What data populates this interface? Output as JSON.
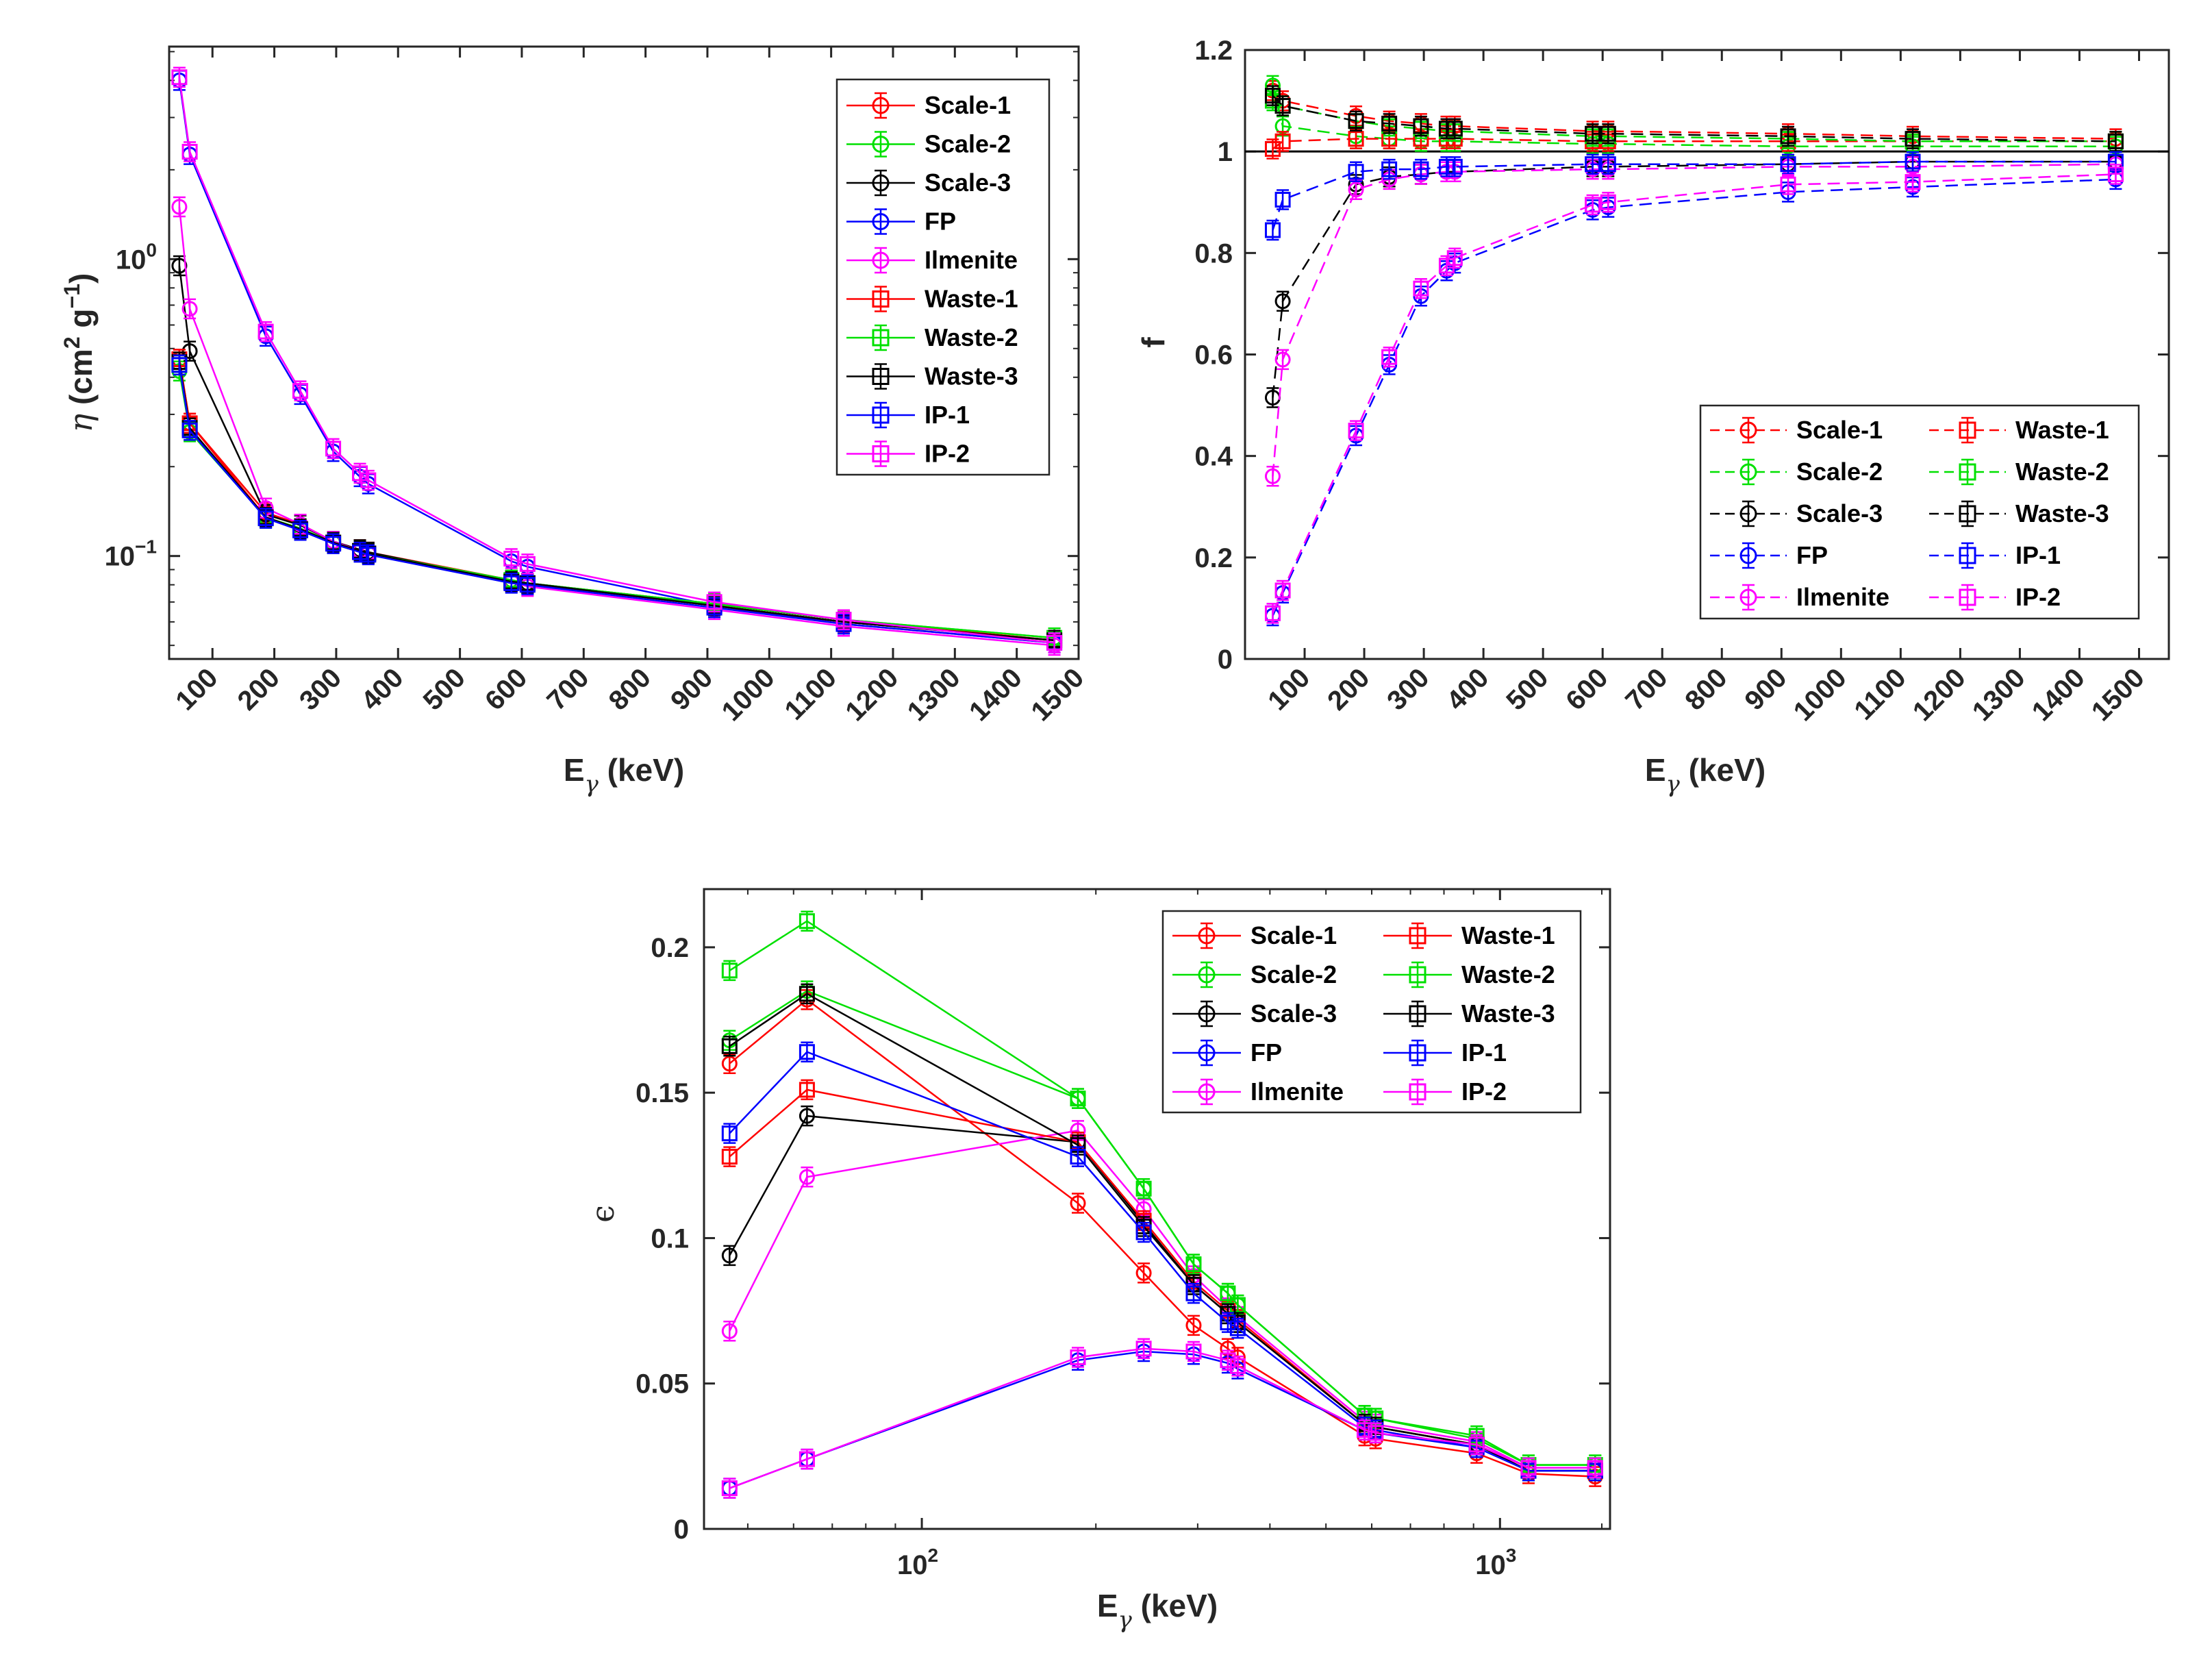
{
  "chart_data": [
    {
      "type": "line",
      "name": "eta",
      "yscale": "log",
      "xscale": "linear",
      "xlim": [
        30,
        1500
      ],
      "ylim": [
        0.045,
        5.2
      ],
      "ylabel_sym": "η",
      "ylabel_rest": " (cm",
      "ylabel_sup1": "2",
      "ylabel_mid": " g",
      "ylabel_sup2": "−1",
      "ylabel_end": ")",
      "xlabel_main": "E",
      "xlabel_sub": "γ",
      "xlabel_unit": " (keV)",
      "xticks": [
        100,
        200,
        300,
        400,
        500,
        600,
        700,
        800,
        900,
        1000,
        1100,
        1200,
        1300,
        1400,
        1500
      ],
      "xtick_labels": [
        "100",
        "200",
        "300",
        "400",
        "500",
        "600",
        "700",
        "800",
        "900",
        "1000",
        "1100",
        "1200",
        "1300",
        "1400",
        "1500"
      ],
      "ytick_labels": [
        {
          "value": 1,
          "base": "10",
          "exp": "0"
        },
        {
          "value": 0.1,
          "base": "10",
          "exp": "−1"
        }
      ],
      "legend_position": "top-right",
      "x": [
        46.5,
        63.3,
        186.2,
        242,
        295.2,
        338.3,
        351.9,
        583.2,
        609.3,
        911.2,
        1120.3,
        1460.8
      ],
      "series": [
        {
          "name": "Scale-1",
          "color": "#ff0000",
          "marker": "circle",
          "values": [
            0.46,
            0.28,
            0.14,
            0.128,
            0.112,
            0.105,
            0.103,
            0.083,
            0.081,
            0.069,
            0.061,
            0.052
          ]
        },
        {
          "name": "Scale-2",
          "color": "#00e000",
          "marker": "circle",
          "values": [
            0.42,
            0.262,
            0.135,
            0.124,
            0.111,
            0.104,
            0.102,
            0.083,
            0.081,
            0.069,
            0.061,
            0.053
          ]
        },
        {
          "name": "Scale-3",
          "color": "#000000",
          "marker": "circle",
          "values": [
            0.95,
            0.49,
            0.138,
            0.127,
            0.112,
            0.105,
            0.103,
            0.082,
            0.081,
            0.068,
            0.06,
            0.052
          ]
        },
        {
          "name": "FP",
          "color": "#0000ff",
          "marker": "circle",
          "values": [
            4.0,
            2.25,
            0.55,
            0.35,
            0.225,
            0.185,
            0.175,
            0.096,
            0.092,
            0.068,
            0.059,
            0.051
          ]
        },
        {
          "name": "Ilmenite",
          "color": "#ff00ff",
          "marker": "circle",
          "values": [
            1.5,
            0.68,
            0.145,
            0.128,
            0.112,
            0.104,
            0.102,
            0.082,
            0.079,
            0.066,
            0.058,
            0.05
          ]
        },
        {
          "name": "Waste-1",
          "color": "#ff0000",
          "marker": "square",
          "values": [
            0.46,
            0.28,
            0.135,
            0.123,
            0.111,
            0.104,
            0.102,
            0.082,
            0.081,
            0.068,
            0.06,
            0.052
          ]
        },
        {
          "name": "Waste-2",
          "color": "#00e000",
          "marker": "square",
          "values": [
            0.44,
            0.27,
            0.134,
            0.123,
            0.111,
            0.104,
            0.102,
            0.083,
            0.081,
            0.069,
            0.061,
            0.053
          ]
        },
        {
          "name": "Waste-3",
          "color": "#000000",
          "marker": "square",
          "values": [
            0.45,
            0.27,
            0.135,
            0.123,
            0.111,
            0.104,
            0.102,
            0.082,
            0.081,
            0.068,
            0.06,
            0.052
          ]
        },
        {
          "name": "IP-1",
          "color": "#0000ff",
          "marker": "square",
          "values": [
            0.44,
            0.265,
            0.134,
            0.122,
            0.11,
            0.103,
            0.101,
            0.081,
            0.08,
            0.067,
            0.059,
            0.051
          ]
        },
        {
          "name": "IP-2",
          "color": "#ff00ff",
          "marker": "square",
          "values": [
            4.1,
            2.3,
            0.57,
            0.36,
            0.23,
            0.19,
            0.18,
            0.098,
            0.094,
            0.07,
            0.061,
            0.051
          ]
        }
      ]
    },
    {
      "type": "line",
      "name": "f",
      "yscale": "linear",
      "xscale": "linear",
      "xlim": [
        0,
        1550
      ],
      "ylim": [
        0,
        1.2
      ],
      "ylabel": "f",
      "xlabel_main": "E",
      "xlabel_sub": "γ",
      "xlabel_unit": " (keV)",
      "xticks": [
        100,
        200,
        300,
        400,
        500,
        600,
        700,
        800,
        900,
        1000,
        1100,
        1200,
        1300,
        1400,
        1500
      ],
      "xtick_labels": [
        "100",
        "200",
        "300",
        "400",
        "500",
        "600",
        "700",
        "800",
        "900",
        "1000",
        "1100",
        "1200",
        "1300",
        "1400",
        "1500"
      ],
      "yticks": [
        0,
        0.2,
        0.4,
        0.6,
        0.8,
        1,
        1.2
      ],
      "ytick_labels": [
        "0",
        "0.2",
        "0.4",
        "0.6",
        "0.8",
        "1",
        "1.2"
      ],
      "reference_line": 1,
      "legend_position": "bottom-right",
      "x": [
        46.5,
        63.3,
        186.2,
        242,
        295.2,
        338.3,
        351.9,
        583.2,
        609.3,
        911.2,
        1120.3,
        1460.8
      ],
      "series": [
        {
          "name": "Scale-1",
          "color": "#ff0000",
          "marker": "circle",
          "values": [
            1.12,
            1.1,
            1.07,
            1.06,
            1.055,
            1.05,
            1.05,
            1.04,
            1.04,
            1.035,
            1.03,
            1.025
          ]
        },
        {
          "name": "Scale-2",
          "color": "#00e000",
          "marker": "circle",
          "values": [
            1.13,
            1.05,
            1.03,
            1.025,
            1.02,
            1.02,
            1.02,
            1.015,
            1.015,
            1.01,
            1.01,
            1.01
          ]
        },
        {
          "name": "Scale-3",
          "color": "#000000",
          "marker": "circle",
          "values": [
            0.515,
            0.705,
            0.935,
            0.95,
            0.955,
            0.96,
            0.96,
            0.97,
            0.97,
            0.975,
            0.98,
            0.98
          ]
        },
        {
          "name": "FP",
          "color": "#0000ff",
          "marker": "circle",
          "values": [
            0.085,
            0.13,
            0.44,
            0.58,
            0.715,
            0.765,
            0.78,
            0.885,
            0.89,
            0.92,
            0.93,
            0.945
          ]
        },
        {
          "name": "Ilmenite",
          "color": "#ff00ff",
          "marker": "circle",
          "values": [
            0.36,
            0.59,
            0.925,
            0.945,
            0.955,
            0.96,
            0.96,
            0.965,
            0.965,
            0.97,
            0.97,
            0.975
          ]
        },
        {
          "name": "Waste-1",
          "color": "#ff0000",
          "marker": "square",
          "values": [
            1.005,
            1.02,
            1.025,
            1.025,
            1.025,
            1.025,
            1.025,
            1.02,
            1.02,
            1.02,
            1.02,
            1.02
          ]
        },
        {
          "name": "Waste-2",
          "color": "#00e000",
          "marker": "square",
          "values": [
            1.1,
            1.09,
            1.06,
            1.05,
            1.045,
            1.04,
            1.04,
            1.03,
            1.03,
            1.025,
            1.02,
            1.02
          ]
        },
        {
          "name": "Waste-3",
          "color": "#000000",
          "marker": "square",
          "values": [
            1.11,
            1.09,
            1.06,
            1.055,
            1.05,
            1.045,
            1.045,
            1.035,
            1.035,
            1.03,
            1.025,
            1.02
          ]
        },
        {
          "name": "IP-1",
          "color": "#0000ff",
          "marker": "square",
          "values": [
            0.845,
            0.905,
            0.96,
            0.965,
            0.965,
            0.97,
            0.97,
            0.975,
            0.975,
            0.975,
            0.98,
            0.98
          ]
        },
        {
          "name": "IP-2",
          "color": "#ff00ff",
          "marker": "square",
          "values": [
            0.09,
            0.135,
            0.45,
            0.595,
            0.73,
            0.775,
            0.79,
            0.895,
            0.9,
            0.935,
            0.94,
            0.955
          ]
        }
      ]
    },
    {
      "type": "line",
      "name": "epsilon",
      "yscale": "linear",
      "xscale": "log",
      "xlim": [
        42,
        1550
      ],
      "ylim": [
        0,
        0.22
      ],
      "ylabel": "ϵ",
      "xlabel_main": "E",
      "xlabel_sub": "γ",
      "xlabel_unit": " (keV)",
      "xtick_labels": [
        {
          "value": 100,
          "base": "10",
          "exp": "2"
        },
        {
          "value": 1000,
          "base": "10",
          "exp": "3"
        }
      ],
      "yticks": [
        0,
        0.05,
        0.1,
        0.15,
        0.2
      ],
      "ytick_labels": [
        "0",
        "0.05",
        "0.1",
        "0.15",
        "0.2"
      ],
      "legend_position": "top-right",
      "x": [
        46.5,
        63.3,
        186.2,
        242,
        295.2,
        338.3,
        351.9,
        583.2,
        609.3,
        911.2,
        1120.3,
        1460.8
      ],
      "series": [
        {
          "name": "Scale-1",
          "color": "#ff0000",
          "marker": "circle",
          "values": [
            0.16,
            0.182,
            0.112,
            0.088,
            0.07,
            0.062,
            0.059,
            0.032,
            0.031,
            0.026,
            0.019,
            0.018
          ]
        },
        {
          "name": "Scale-2",
          "color": "#00e000",
          "marker": "circle",
          "values": [
            0.168,
            0.185,
            0.148,
            0.117,
            0.091,
            0.081,
            0.077,
            0.039,
            0.038,
            0.031,
            0.022,
            0.022
          ]
        },
        {
          "name": "Scale-3",
          "color": "#000000",
          "marker": "circle",
          "values": [
            0.094,
            0.142,
            0.133,
            0.105,
            0.084,
            0.074,
            0.071,
            0.036,
            0.035,
            0.029,
            0.02,
            0.02
          ]
        },
        {
          "name": "FP",
          "color": "#0000ff",
          "marker": "circle",
          "values": [
            0.014,
            0.024,
            0.058,
            0.061,
            0.06,
            0.057,
            0.055,
            0.034,
            0.033,
            0.028,
            0.02,
            0.02
          ]
        },
        {
          "name": "Ilmenite",
          "color": "#ff00ff",
          "marker": "circle",
          "values": [
            0.068,
            0.121,
            0.137,
            0.11,
            0.087,
            0.076,
            0.073,
            0.037,
            0.036,
            0.03,
            0.021,
            0.021
          ]
        },
        {
          "name": "Waste-1",
          "color": "#ff0000",
          "marker": "square",
          "values": [
            0.128,
            0.151,
            0.133,
            0.106,
            0.085,
            0.075,
            0.072,
            0.036,
            0.035,
            0.029,
            0.02,
            0.02
          ]
        },
        {
          "name": "Waste-2",
          "color": "#00e000",
          "marker": "square",
          "values": [
            0.192,
            0.209,
            0.148,
            0.117,
            0.091,
            0.081,
            0.077,
            0.039,
            0.038,
            0.032,
            0.022,
            0.022
          ]
        },
        {
          "name": "Waste-3",
          "color": "#000000",
          "marker": "square",
          "values": [
            0.166,
            0.184,
            0.132,
            0.104,
            0.084,
            0.074,
            0.071,
            0.036,
            0.035,
            0.029,
            0.02,
            0.02
          ]
        },
        {
          "name": "IP-1",
          "color": "#0000ff",
          "marker": "square",
          "values": [
            0.136,
            0.164,
            0.128,
            0.102,
            0.081,
            0.071,
            0.069,
            0.035,
            0.034,
            0.028,
            0.02,
            0.02
          ]
        },
        {
          "name": "IP-2",
          "color": "#ff00ff",
          "marker": "square",
          "values": [
            0.014,
            0.024,
            0.059,
            0.062,
            0.061,
            0.058,
            0.056,
            0.034,
            0.033,
            0.029,
            0.021,
            0.021
          ]
        }
      ]
    }
  ]
}
